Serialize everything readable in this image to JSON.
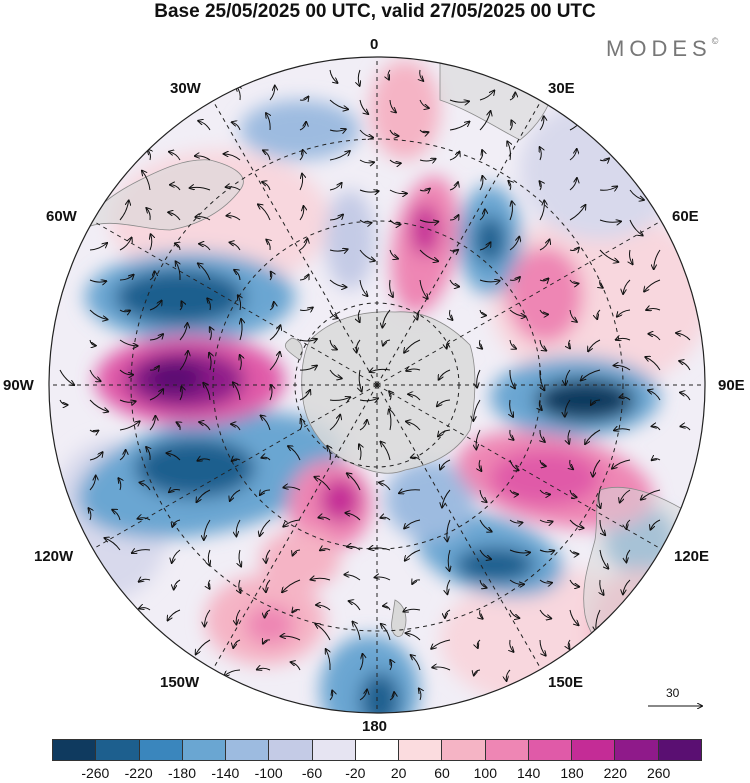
{
  "title": "Base 25/05/2025 00 UTC, valid 27/05/2025 00 UTC",
  "brand": "MODES",
  "brand_mark": "©",
  "longitude_labels": {
    "top": "0",
    "bottom": "180",
    "left": "90W",
    "right": "90E",
    "nw30": "30W",
    "ne30": "30E",
    "nw60": "60W",
    "ne60": "60E",
    "sw120": "120W",
    "se120": "120E",
    "sw150": "150W",
    "se150": "150E"
  },
  "reference_vector": {
    "label": "30"
  },
  "colorbar": {
    "colors": [
      "#0f3a5f",
      "#1d5f8e",
      "#3a86bd",
      "#6aa6d2",
      "#9dbbe0",
      "#c4cbe6",
      "#e6e4f2",
      "#ffffff",
      "#fbdcdf",
      "#f5b4c5",
      "#ee86b4",
      "#e05aa8",
      "#c42c96",
      "#8f1a8a",
      "#5a0f72"
    ],
    "tick_labels": [
      "-260",
      "-220",
      "-180",
      "-140",
      "-100",
      "-60",
      "-20",
      "20",
      "60",
      "100",
      "140",
      "180",
      "220",
      "260"
    ]
  },
  "colors": {
    "land": "#d9d9d9",
    "coast": "#8a8a8a",
    "grid": "#222222"
  }
}
